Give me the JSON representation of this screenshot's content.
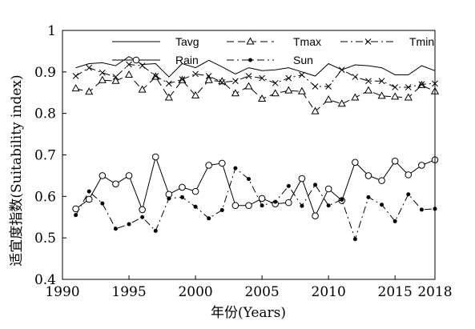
{
  "chart_data": {
    "type": "line",
    "xlabel": "年份(Years)",
    "ylabel": "适宜度指数(Suitability index)",
    "xlim": [
      1990,
      2018
    ],
    "ylim": [
      0.4,
      1.0
    ],
    "xticks": [
      1990,
      1995,
      2000,
      2005,
      2010,
      2015,
      2018
    ],
    "xtick_labels": [
      "1990",
      "1995",
      "2000",
      "2005",
      "2010",
      "2015",
      "2018"
    ],
    "yticks": [
      0.4,
      0.5,
      0.6,
      0.7,
      0.8,
      0.9,
      1.0
    ],
    "ytick_labels": [
      "0.4",
      "0.5",
      "0.6",
      "0.7",
      "0.8",
      "0.9",
      "1"
    ],
    "grid": false,
    "legend_position": "top",
    "x": [
      1991,
      1992,
      1993,
      1994,
      1995,
      1996,
      1997,
      1998,
      1999,
      2000,
      2001,
      2002,
      2003,
      2004,
      2005,
      2006,
      2007,
      2008,
      2009,
      2010,
      2011,
      2012,
      2013,
      2014,
      2015,
      2016,
      2017,
      2018
    ],
    "series": [
      {
        "name": "Tavg",
        "style": "solid",
        "marker": "none",
        "values": [
          0.91,
          0.92,
          0.922,
          0.915,
          0.937,
          0.918,
          0.92,
          0.888,
          0.92,
          0.91,
          0.928,
          0.912,
          0.895,
          0.91,
          0.903,
          0.905,
          0.91,
          0.9,
          0.89,
          0.92,
          0.905,
          0.917,
          0.915,
          0.91,
          0.893,
          0.893,
          0.915,
          0.903
        ]
      },
      {
        "name": "Tmax",
        "style": "dash",
        "marker": "triangle",
        "values": [
          0.86,
          0.852,
          0.88,
          0.878,
          0.893,
          0.857,
          0.888,
          0.838,
          0.88,
          0.843,
          0.88,
          0.877,
          0.848,
          0.865,
          0.835,
          0.848,
          0.855,
          0.853,
          0.805,
          0.833,
          0.823,
          0.838,
          0.855,
          0.842,
          0.84,
          0.838,
          0.868,
          0.853
        ]
      },
      {
        "name": "Tmin",
        "style": "dashdot",
        "marker": "x",
        "values": [
          0.89,
          0.91,
          0.898,
          0.888,
          0.918,
          0.915,
          0.89,
          0.872,
          0.882,
          0.895,
          0.89,
          0.875,
          0.878,
          0.89,
          0.885,
          0.873,
          0.885,
          0.893,
          0.865,
          0.865,
          0.905,
          0.888,
          0.878,
          0.878,
          0.863,
          0.863,
          0.87,
          0.872
        ]
      },
      {
        "name": "Rain",
        "style": "solid",
        "marker": "circle",
        "values": [
          0.57,
          0.593,
          0.65,
          0.63,
          0.65,
          0.568,
          0.695,
          0.605,
          0.622,
          0.612,
          0.675,
          0.68,
          0.578,
          0.578,
          0.595,
          0.582,
          0.585,
          0.643,
          0.553,
          0.618,
          0.59,
          0.682,
          0.65,
          0.638,
          0.685,
          0.652,
          0.675,
          0.688
        ]
      },
      {
        "name": "Sun",
        "style": "dashdot",
        "marker": "dot",
        "values": [
          0.555,
          0.612,
          0.583,
          0.522,
          0.533,
          0.55,
          0.517,
          0.595,
          0.598,
          0.575,
          0.547,
          0.567,
          0.668,
          0.642,
          0.578,
          0.587,
          0.625,
          0.577,
          0.628,
          0.578,
          0.592,
          0.497,
          0.598,
          0.58,
          0.54,
          0.605,
          0.568,
          0.57
        ]
      }
    ]
  }
}
